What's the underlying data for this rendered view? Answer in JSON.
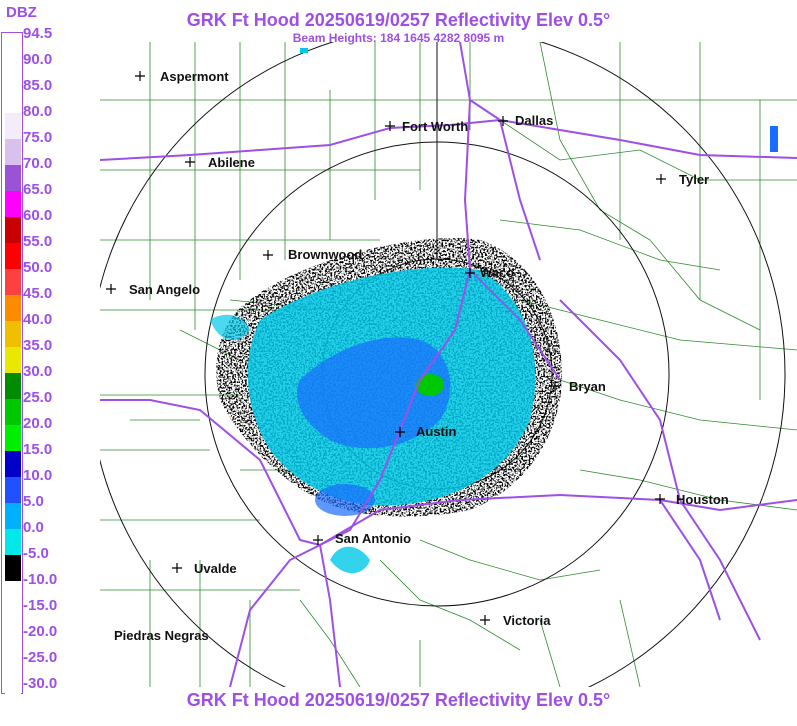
{
  "header": {
    "title": "GRK Ft Hood 20250619/0257 Reflectivity Elev 0.5°",
    "subtitle": "Beam Heights: 184 1645 4282 8095 m"
  },
  "footer": {
    "title": "GRK Ft Hood 20250619/0257 Reflectivity Elev 0.5°"
  },
  "color_scale": {
    "unit": "DBZ",
    "levels": [
      {
        "label": "94.5",
        "color": "#ffffff"
      },
      {
        "label": "90.0",
        "color": "#ffffff"
      },
      {
        "label": "85.0",
        "color": "#ffffff"
      },
      {
        "label": "80.0",
        "color": "#f4ecfb"
      },
      {
        "label": "75.0",
        "color": "#d9c1ee"
      },
      {
        "label": "70.0",
        "color": "#9a52d6"
      },
      {
        "label": "65.0",
        "color": "#ff00ff"
      },
      {
        "label": "60.0",
        "color": "#c80000"
      },
      {
        "label": "55.0",
        "color": "#ff0000"
      },
      {
        "label": "50.0",
        "color": "#ff4040"
      },
      {
        "label": "45.0",
        "color": "#ff8c00"
      },
      {
        "label": "40.0",
        "color": "#f0c000"
      },
      {
        "label": "35.0",
        "color": "#e8e800"
      },
      {
        "label": "30.0",
        "color": "#008c00"
      },
      {
        "label": "25.0",
        "color": "#00c800"
      },
      {
        "label": "20.0",
        "color": "#00ee00"
      },
      {
        "label": "15.0",
        "color": "#0000c8"
      },
      {
        "label": "10.0",
        "color": "#2050ff"
      },
      {
        "label": "5.0",
        "color": "#00b0ff"
      },
      {
        "label": "0.0",
        "color": "#00e8e8"
      },
      {
        "label": "-5.0",
        "color": "#000000"
      },
      {
        "label": "-10.0",
        "color": "#ffffff"
      },
      {
        "label": "-15.0",
        "color": "#ffffff"
      },
      {
        "label": "-20.0",
        "color": "#ffffff"
      },
      {
        "label": "-25.0",
        "color": "#ffffff"
      },
      {
        "label": "-30.0",
        "color": "#ffffff"
      }
    ]
  },
  "cities": [
    {
      "name": "Aspermont"
    },
    {
      "name": "Fort Worth"
    },
    {
      "name": "Dallas"
    },
    {
      "name": "Abilene"
    },
    {
      "name": "Tyler"
    },
    {
      "name": "Brownwood"
    },
    {
      "name": "Waco"
    },
    {
      "name": "San Angelo"
    },
    {
      "name": "Bryan"
    },
    {
      "name": "Austin"
    },
    {
      "name": "Houston"
    },
    {
      "name": "San Antonio"
    },
    {
      "name": "Uvalde"
    },
    {
      "name": "Victoria"
    },
    {
      "name": "Piedras Negras"
    }
  ],
  "colors": {
    "accent": "#9d4fe8",
    "county_lines": "#2e8b2e",
    "highways": "#9d4fe8",
    "range_rings": "#111111"
  }
}
